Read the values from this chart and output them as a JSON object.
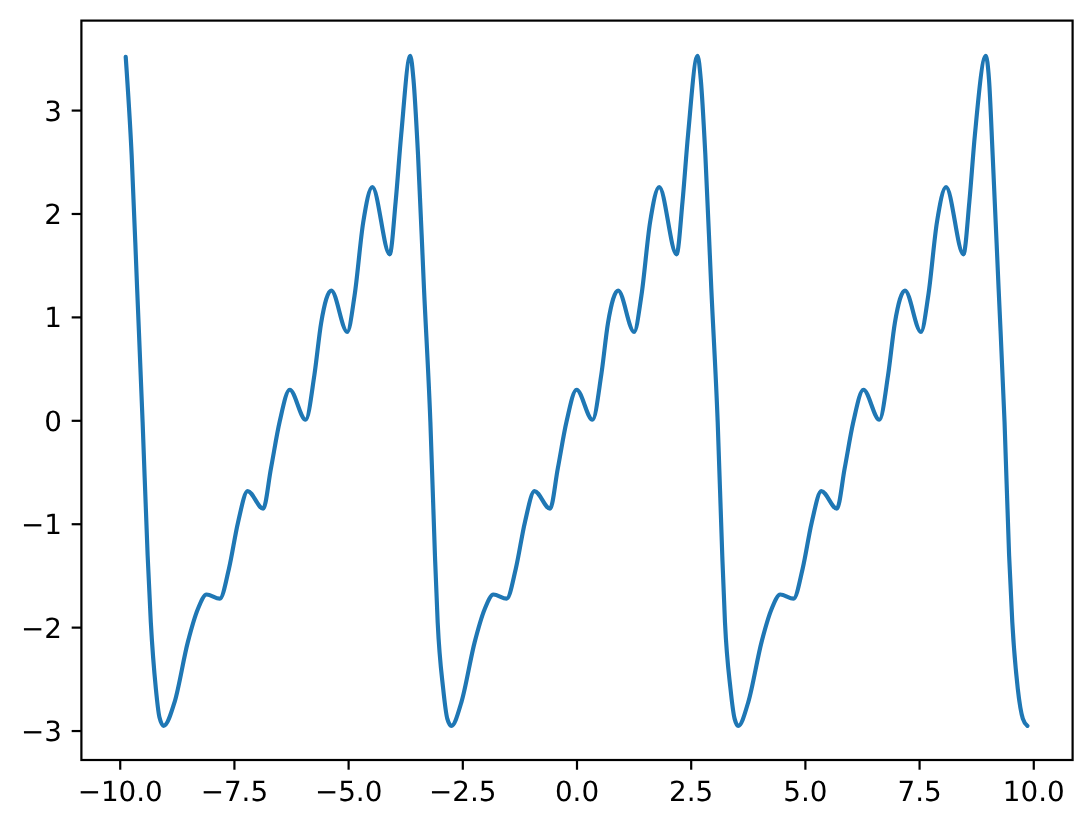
{
  "chart_data": {
    "type": "line",
    "x": [
      -9.88,
      -9.75,
      -9.63,
      -9.51,
      -9.4,
      -9.33,
      -9.22,
      -9.14,
      -9.05,
      -8.81,
      -8.52,
      -8.3,
      -8.11,
      -7.82,
      -7.62,
      -7.42,
      -7.21,
      -6.87,
      -6.7,
      -6.51,
      -6.29,
      -5.94,
      -5.75,
      -5.6,
      -5.38,
      -5.03,
      -4.87,
      -4.68,
      -4.48,
      -4.1,
      -3.97,
      -3.85,
      -3.65,
      -3.58,
      -3.48,
      -3.35,
      -3.21,
      -3.11,
      -3.05,
      -2.93,
      -2.84,
      -2.75,
      -2.53,
      -2.24,
      -2.02,
      -1.83,
      -1.54,
      -1.34,
      -1.14,
      -0.93,
      -0.59,
      -0.42,
      -0.23,
      -0.01,
      0.34,
      0.53,
      0.68,
      0.9,
      1.25,
      1.41,
      1.6,
      1.8,
      2.18,
      2.31,
      2.43,
      2.64,
      2.71,
      2.81,
      2.94,
      3.08,
      3.18,
      3.24,
      3.36,
      3.45,
      3.53,
      3.75,
      4.04,
      4.26,
      4.45,
      4.74,
      4.94,
      5.14,
      5.35,
      5.69,
      5.86,
      6.05,
      6.27,
      6.62,
      6.81,
      6.96,
      7.18,
      7.53,
      7.69,
      7.88,
      8.08,
      8.46,
      8.59,
      8.71,
      8.95,
      9.02,
      9.1,
      9.23,
      9.36,
      9.46,
      9.53,
      9.65,
      9.76,
      9.86
    ],
    "series": [
      {
        "color": "#1f77b4",
        "values": [
          3.52,
          2.57,
          1.28,
          -0.01,
          -1.3,
          -1.95,
          -2.59,
          -2.87,
          -2.95,
          -2.72,
          -2.14,
          -1.82,
          -1.68,
          -1.72,
          -1.43,
          -0.98,
          -0.68,
          -0.85,
          -0.46,
          -0.01,
          0.3,
          0.01,
          0.44,
          0.95,
          1.26,
          0.86,
          1.21,
          1.92,
          2.26,
          1.61,
          2.12,
          2.76,
          3.53,
          3.3,
          2.57,
          1.28,
          -0.01,
          -1.3,
          -1.95,
          -2.59,
          -2.88,
          -2.95,
          -2.72,
          -2.14,
          -1.82,
          -1.68,
          -1.72,
          -1.43,
          -0.98,
          -0.68,
          -0.85,
          -0.46,
          -0.01,
          0.3,
          0.01,
          0.44,
          0.95,
          1.26,
          0.86,
          1.21,
          1.92,
          2.26,
          1.61,
          2.12,
          2.76,
          3.53,
          3.3,
          2.57,
          1.28,
          -0.01,
          -1.3,
          -1.95,
          -2.59,
          -2.88,
          -2.95,
          -2.72,
          -2.14,
          -1.82,
          -1.68,
          -1.72,
          -1.43,
          -0.98,
          -0.68,
          -0.85,
          -0.46,
          -0.01,
          0.3,
          0.01,
          0.44,
          0.95,
          1.26,
          0.86,
          1.21,
          1.92,
          2.26,
          1.61,
          2.12,
          2.76,
          3.53,
          3.3,
          2.57,
          1.28,
          -0.01,
          -1.3,
          -1.95,
          -2.59,
          -2.88,
          -2.95
        ]
      }
    ],
    "xlim": [
      -10.85,
      10.85
    ],
    "ylim": [
      -3.28,
      3.87
    ],
    "xticks": [
      {
        "value": -10,
        "label": "−10.0"
      },
      {
        "value": -7.5,
        "label": "−7.5"
      },
      {
        "value": -5,
        "label": "−5.0"
      },
      {
        "value": -2.5,
        "label": "−2.5"
      },
      {
        "value": 0,
        "label": "0.0"
      },
      2.5,
      {
        "value": 5,
        "label": "5.0"
      },
      7.5,
      {
        "value": 10,
        "label": "10.0"
      }
    ],
    "yticks": [
      {
        "value": -3,
        "label": "−3"
      },
      {
        "value": -2,
        "label": "−2"
      },
      {
        "value": -1,
        "label": "−1"
      },
      0,
      1,
      2,
      3
    ]
  }
}
